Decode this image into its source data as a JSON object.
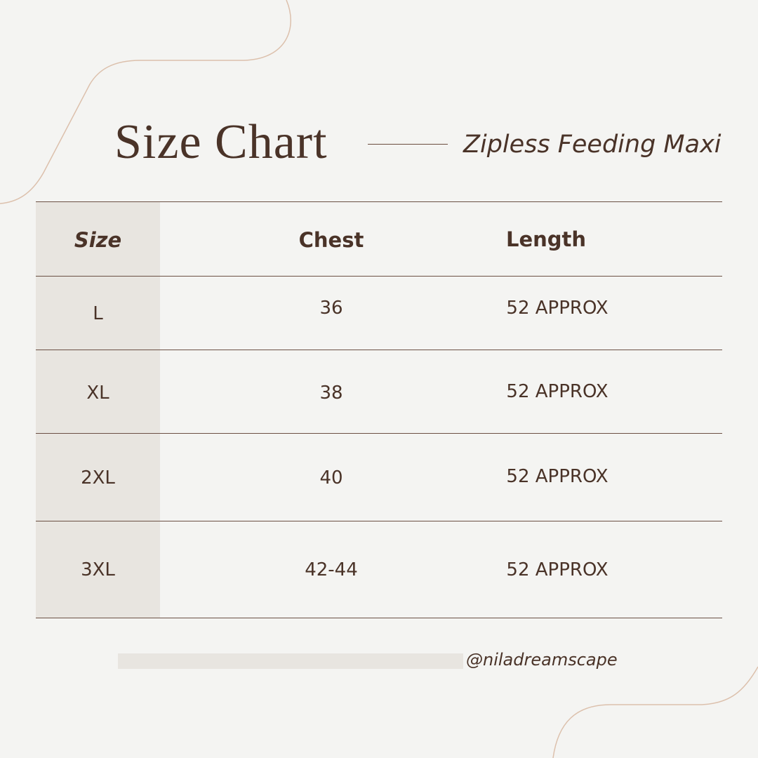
{
  "title": "Size Chart",
  "subtitle": "Zipless Feeding Maxi",
  "colors": {
    "background": "#f4f4f2",
    "text": "#4a3328",
    "accent_line": "#d8b8a2",
    "size_column": "#e8e5e0"
  },
  "table": {
    "headers": {
      "size": "Size",
      "chest": "Chest",
      "length": "Length"
    },
    "rows": [
      {
        "size": "L",
        "chest": "36",
        "length": "52 APPROX"
      },
      {
        "size": "XL",
        "chest": "38",
        "length": "52 APPROX"
      },
      {
        "size": "2XL",
        "chest": "40",
        "length": "52 APPROX"
      },
      {
        "size": "3XL",
        "chest": "42-44",
        "length": "52 APPROX"
      }
    ]
  },
  "footer": {
    "handle": "@niladreamscape"
  }
}
